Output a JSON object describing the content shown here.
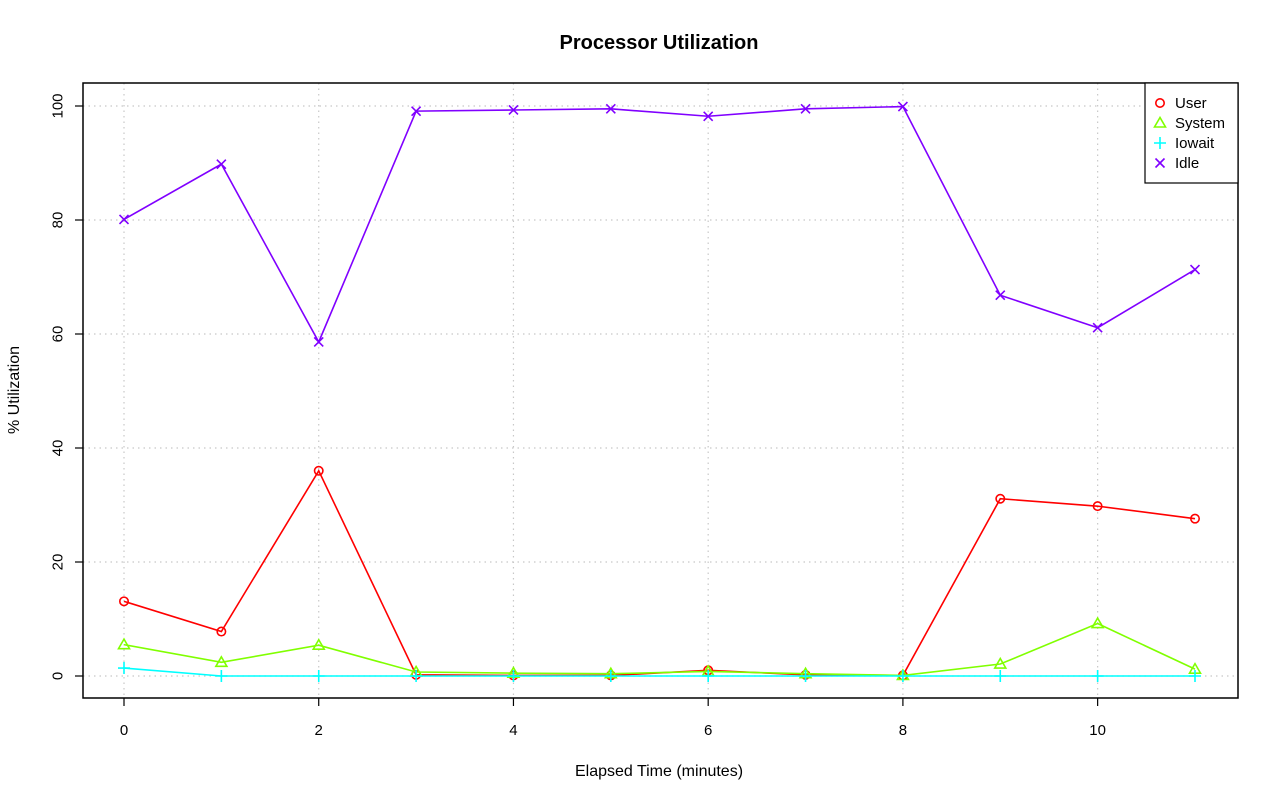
{
  "chart_data": {
    "type": "line",
    "title": "Processor Utilization",
    "xlabel": "Elapsed Time (minutes)",
    "ylabel": "% Utilization",
    "xlim": [
      0,
      11
    ],
    "ylim": [
      0,
      100
    ],
    "x_ticks": [
      "0",
      "2",
      "4",
      "6",
      "8",
      "10"
    ],
    "y_ticks": [
      "0",
      "20",
      "40",
      "60",
      "80",
      "100"
    ],
    "grid": true,
    "legend_position": "top-right",
    "x": [
      0,
      1,
      2,
      3,
      4,
      5,
      6,
      7,
      8,
      9,
      10,
      11
    ],
    "series": [
      {
        "name": "User",
        "color": "#ff0000",
        "marker": "circle",
        "values": [
          13.1,
          7.8,
          36.0,
          0.2,
          0.1,
          0.1,
          1.0,
          0.2,
          0.1,
          31.1,
          29.8,
          27.6
        ]
      },
      {
        "name": "System",
        "color": "#80ff00",
        "marker": "triangle",
        "values": [
          5.5,
          2.4,
          5.4,
          0.7,
          0.5,
          0.4,
          0.8,
          0.4,
          0.1,
          2.1,
          9.2,
          1.2
        ]
      },
      {
        "name": "Iowait",
        "color": "#00ffff",
        "marker": "plus",
        "values": [
          1.4,
          0.0,
          0.0,
          0.0,
          0.0,
          0.0,
          0.0,
          0.0,
          0.0,
          0.0,
          0.0,
          0.0
        ]
      },
      {
        "name": "Idle",
        "color": "#8000ff",
        "marker": "cross",
        "values": [
          80.1,
          89.8,
          58.6,
          99.1,
          99.3,
          99.5,
          98.2,
          99.5,
          99.9,
          66.8,
          61.1,
          71.3
        ]
      }
    ]
  }
}
